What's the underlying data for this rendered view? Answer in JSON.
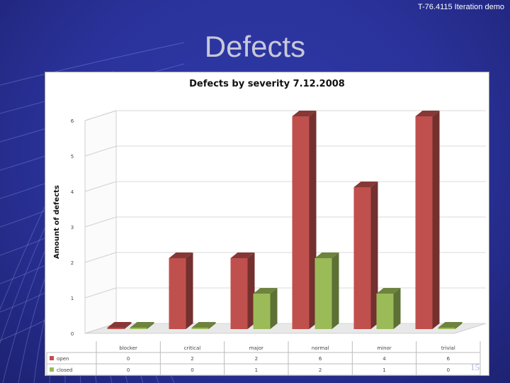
{
  "slide": {
    "course_label": "T-76.4115 Iteration demo",
    "title": "Defects",
    "page_number": "15"
  },
  "colors": {
    "open": "#c0504d",
    "closed": "#9bbb59",
    "background": "#2a329a"
  },
  "chart_data": {
    "type": "bar",
    "title": "Defects by severity 7.12.2008",
    "xlabel": "",
    "ylabel": "Amount of defects",
    "ylim": [
      0,
      6
    ],
    "yticks": [
      0,
      1,
      2,
      3,
      4,
      5,
      6
    ],
    "categories": [
      "blocker",
      "critical",
      "major",
      "normal",
      "minor",
      "trivial"
    ],
    "series": [
      {
        "name": "open",
        "values": [
          0,
          2,
          2,
          6,
          4,
          6
        ]
      },
      {
        "name": "closed",
        "values": [
          0,
          0,
          1,
          2,
          1,
          0
        ]
      }
    ],
    "legend": "table-below",
    "grid": true
  }
}
